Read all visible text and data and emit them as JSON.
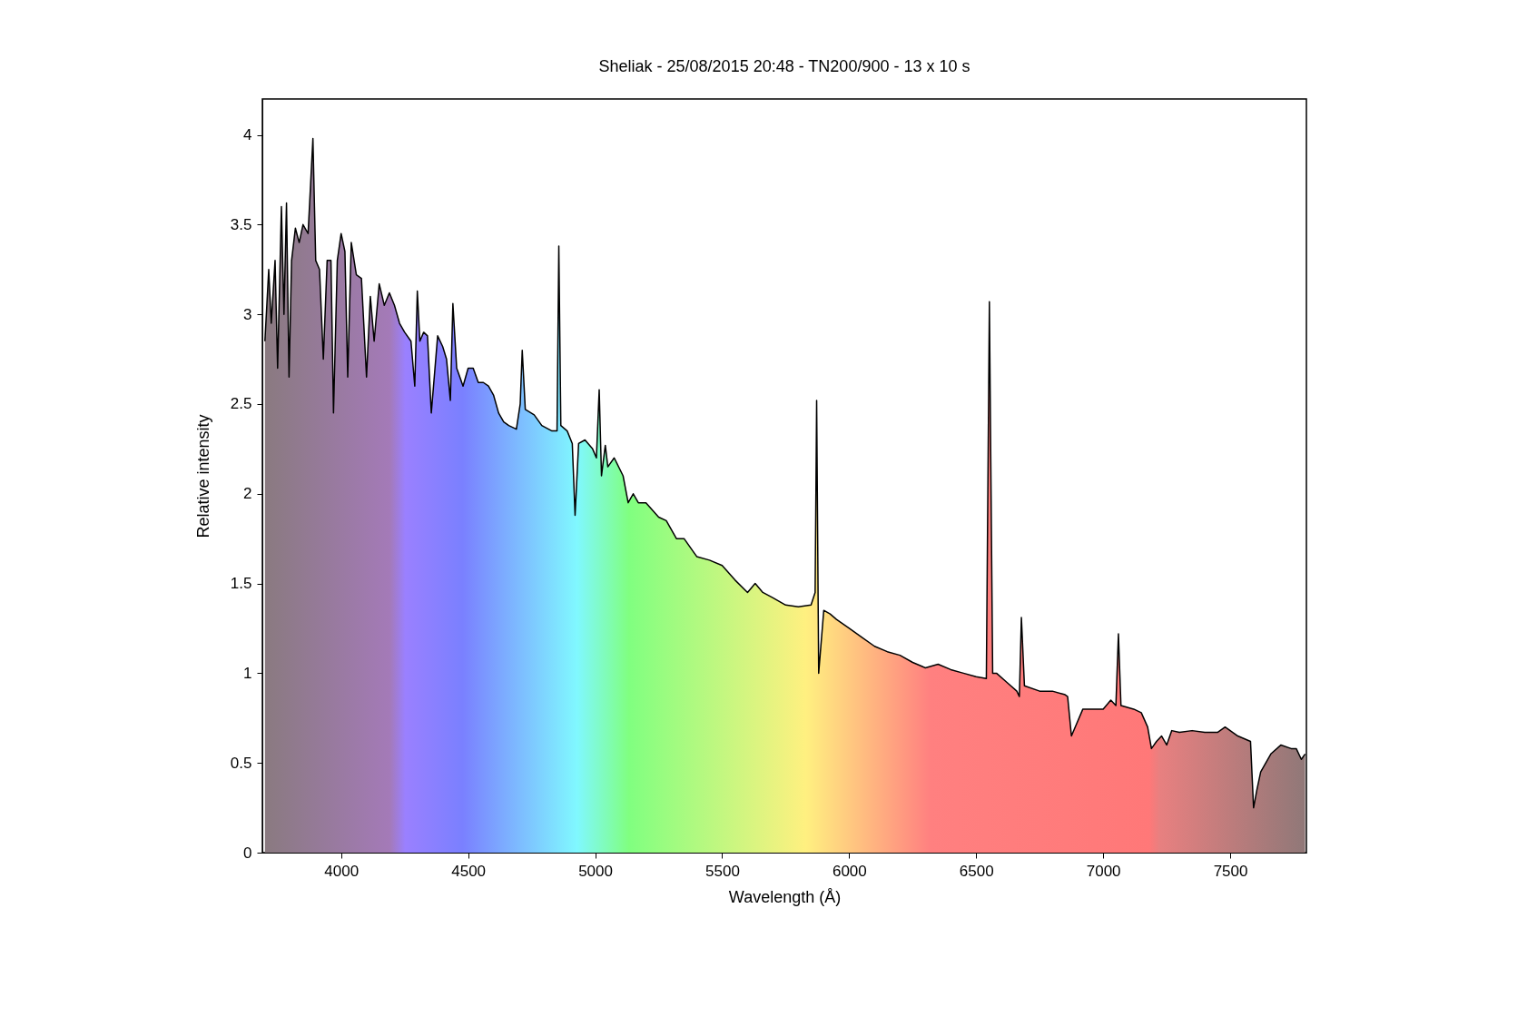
{
  "chart_data": {
    "type": "area",
    "title": "Sheliak - 25/08/2015 20:48 - TN200/900 - 13 x 10 s",
    "xlabel": "Wavelength (Å)",
    "ylabel": "Relative intensity",
    "xlim": [
      3690,
      7800
    ],
    "xticks": [
      4000,
      4500,
      5000,
      5500,
      6000,
      6500,
      7000,
      7500
    ],
    "ylim": [
      0,
      4.2
    ],
    "yticks": [
      0,
      0.5,
      1,
      1.5,
      2,
      2.5,
      3,
      3.5,
      4
    ],
    "grid": false,
    "series": [
      {
        "color": "#000000",
        "x": [
          3700,
          3715,
          3725,
          3740,
          3750,
          3765,
          3775,
          3785,
          3795,
          3805,
          3820,
          3835,
          3850,
          3870,
          3889,
          3900,
          3915,
          3930,
          3945,
          3960,
          3970,
          3985,
          4000,
          4015,
          4026,
          4040,
          4060,
          4080,
          4100,
          4115,
          4130,
          4150,
          4170,
          4190,
          4210,
          4230,
          4250,
          4275,
          4290,
          4300,
          4310,
          4325,
          4340,
          4355,
          4380,
          4400,
          4415,
          4430,
          4440,
          4455,
          4480,
          4500,
          4520,
          4540,
          4560,
          4580,
          4600,
          4620,
          4640,
          4660,
          4690,
          4705,
          4713,
          4725,
          4760,
          4790,
          4830,
          4850,
          4857,
          4865,
          4890,
          4910,
          4921,
          4935,
          4960,
          4990,
          5005,
          5016,
          5025,
          5040,
          5050,
          5075,
          5110,
          5130,
          5150,
          5170,
          5200,
          5250,
          5280,
          5320,
          5350,
          5400,
          5450,
          5500,
          5550,
          5600,
          5630,
          5660,
          5700,
          5750,
          5800,
          5850,
          5866,
          5872,
          5880,
          5900,
          5925,
          5950,
          6000,
          6050,
          6100,
          6150,
          6200,
          6250,
          6300,
          6350,
          6400,
          6450,
          6500,
          6540,
          6552,
          6565,
          6580,
          6620,
          6660,
          6670,
          6678,
          6690,
          6750,
          6800,
          6850,
          6860,
          6875,
          6920,
          6960,
          7000,
          7030,
          7050,
          7060,
          7070,
          7120,
          7150,
          7175,
          7190,
          7210,
          7230,
          7250,
          7270,
          7300,
          7350,
          7400,
          7450,
          7480,
          7500,
          7530,
          7580,
          7592,
          7605,
          7620,
          7660,
          7700,
          7740,
          7760,
          7780,
          7795
        ],
        "values": [
          2.85,
          3.25,
          2.95,
          3.3,
          2.7,
          3.6,
          3.0,
          3.62,
          2.65,
          3.3,
          3.48,
          3.4,
          3.5,
          3.45,
          3.98,
          3.3,
          3.25,
          2.75,
          3.3,
          3.3,
          2.45,
          3.3,
          3.45,
          3.35,
          2.65,
          3.4,
          3.22,
          3.2,
          2.65,
          3.1,
          2.85,
          3.17,
          3.05,
          3.12,
          3.05,
          2.95,
          2.9,
          2.85,
          2.6,
          3.13,
          2.85,
          2.9,
          2.88,
          2.45,
          2.88,
          2.82,
          2.75,
          2.52,
          3.06,
          2.7,
          2.6,
          2.7,
          2.7,
          2.62,
          2.62,
          2.6,
          2.55,
          2.45,
          2.4,
          2.38,
          2.36,
          2.5,
          2.8,
          2.47,
          2.44,
          2.38,
          2.35,
          2.35,
          3.38,
          2.38,
          2.35,
          2.28,
          1.88,
          2.28,
          2.3,
          2.25,
          2.2,
          2.58,
          2.1,
          2.27,
          2.15,
          2.2,
          2.1,
          1.95,
          2.0,
          1.95,
          1.95,
          1.87,
          1.85,
          1.75,
          1.75,
          1.65,
          1.63,
          1.6,
          1.52,
          1.45,
          1.5,
          1.45,
          1.42,
          1.38,
          1.37,
          1.38,
          1.45,
          2.52,
          1.0,
          1.35,
          1.33,
          1.3,
          1.25,
          1.2,
          1.15,
          1.12,
          1.1,
          1.06,
          1.03,
          1.05,
          1.02,
          1.0,
          0.98,
          0.97,
          3.07,
          1.0,
          1.0,
          0.95,
          0.9,
          0.87,
          1.31,
          0.93,
          0.9,
          0.9,
          0.88,
          0.87,
          0.65,
          0.8,
          0.8,
          0.8,
          0.85,
          0.82,
          1.22,
          0.82,
          0.8,
          0.78,
          0.7,
          0.58,
          0.62,
          0.65,
          0.6,
          0.68,
          0.67,
          0.68,
          0.67,
          0.67,
          0.7,
          0.68,
          0.65,
          0.62,
          0.25,
          0.35,
          0.45,
          0.55,
          0.6,
          0.58,
          0.58,
          0.52,
          0.55
        ]
      }
    ]
  }
}
